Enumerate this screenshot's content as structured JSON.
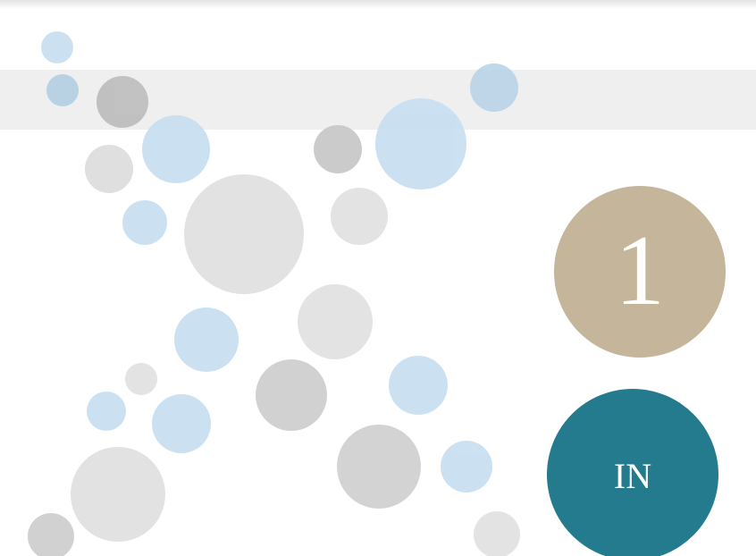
{
  "badge": {
    "number": "1"
  },
  "button": {
    "label": "IN"
  }
}
